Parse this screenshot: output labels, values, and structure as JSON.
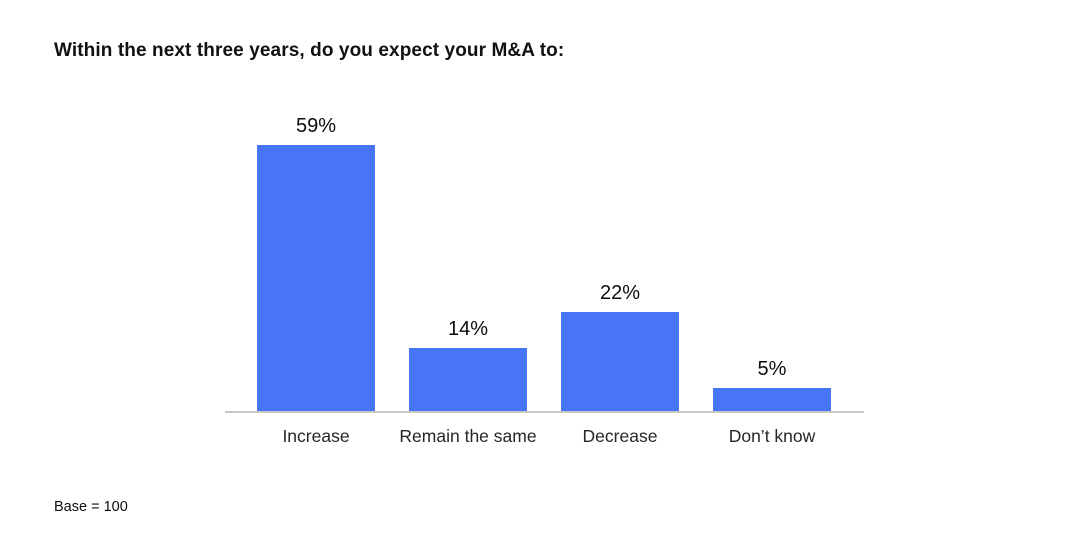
{
  "title": "Within the next three years, do you expect your M&A to:",
  "base_note": "Base = 100",
  "chart_data": {
    "type": "bar",
    "title": "Within the next three years, do you expect your M&A to:",
    "categories": [
      "Increase",
      "Remain the same",
      "Decrease",
      "Don’t know"
    ],
    "values": [
      59,
      14,
      22,
      5
    ],
    "value_labels": [
      "59%",
      "14%",
      "22%",
      "5%"
    ],
    "xlabel": "",
    "ylabel": "",
    "ylim": [
      0,
      65
    ],
    "grid": false,
    "legend": false,
    "bar_color": "#4775f6",
    "axis_line_color": "#c7c7c7",
    "footnote": "Base = 100"
  }
}
